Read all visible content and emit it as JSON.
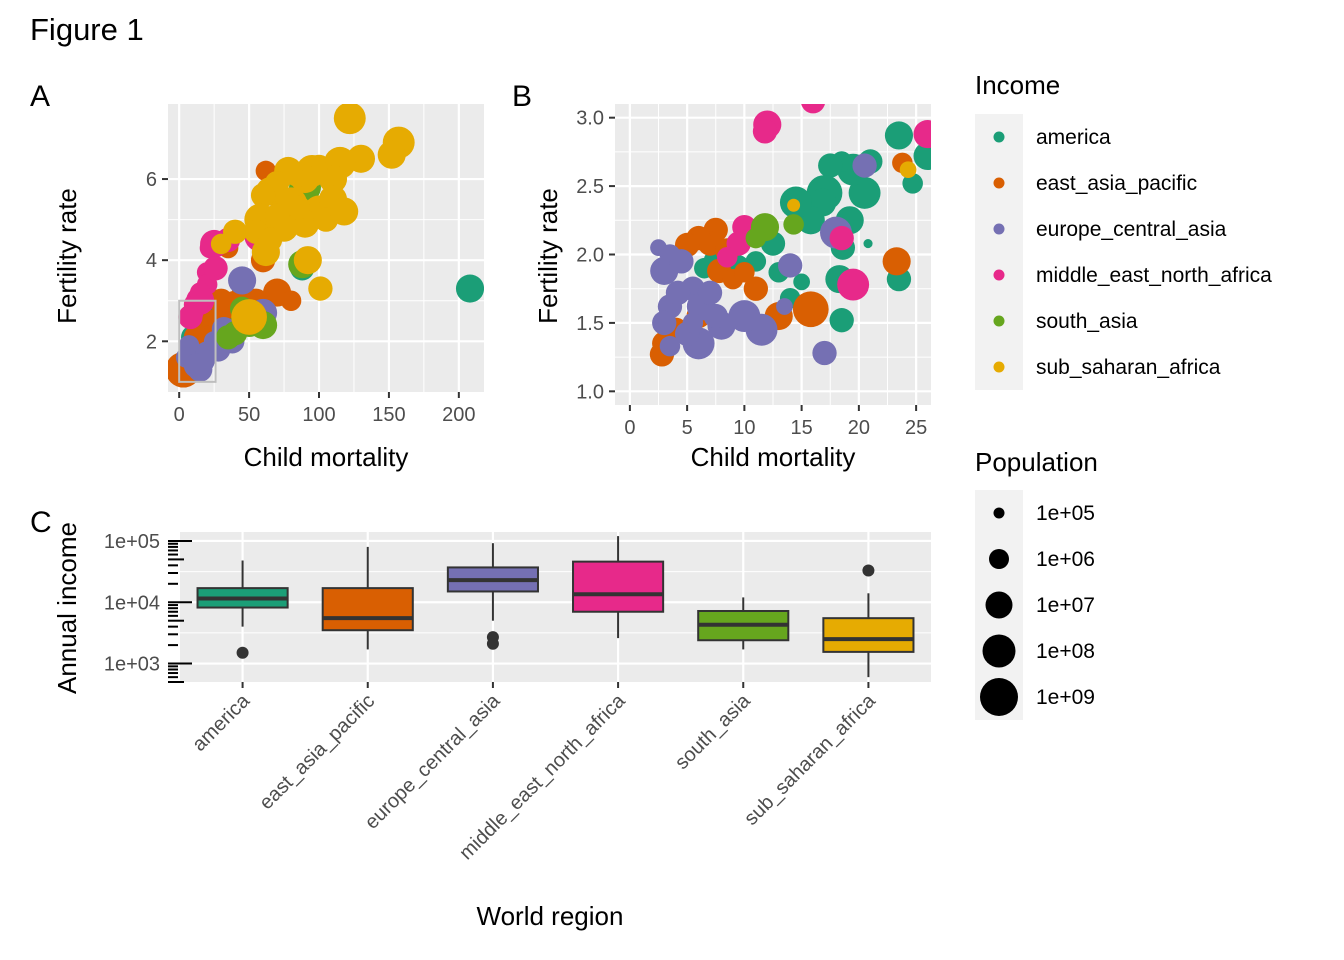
{
  "figure_title": "Figure 1",
  "panel_labels": {
    "a": "A",
    "b": "B",
    "c": "C"
  },
  "colors": {
    "america": "#1B9E77",
    "east_asia_pacific": "#D95F02",
    "europe_central_asia": "#7570B3",
    "middle_east_north_africa": "#E7298A",
    "south_asia": "#66A61E",
    "sub_saharan_africa": "#E6AB02",
    "panel_bg": "#EBEBEB",
    "grid": "#FFFFFF",
    "zoom_box": "#BEBEBE"
  },
  "legend": {
    "income_title": "Income",
    "income_keys": [
      "america",
      "east_asia_pacific",
      "europe_central_asia",
      "middle_east_north_africa",
      "south_asia",
      "sub_saharan_africa"
    ],
    "population_title": "Population",
    "population_keys": [
      "1e+05",
      "1e+06",
      "1e+07",
      "1e+08",
      "1e+09"
    ]
  },
  "chart_data": [
    {
      "id": "A",
      "type": "scatter",
      "title": "A",
      "xlabel": "Child mortality",
      "ylabel": "Fertility rate",
      "xlim": [
        -8,
        218
      ],
      "ylim": [
        0.75,
        7.85
      ],
      "xticks": [
        0,
        50,
        100,
        150,
        200
      ],
      "yticks": [
        2,
        4,
        6
      ],
      "zoom_box": {
        "x": [
          0,
          26
        ],
        "y": [
          1,
          3
        ]
      },
      "series": [
        {
          "name": "america",
          "points": [
            [
              208,
              3.3,
              7.5
            ],
            [
              90,
              5.8,
              6
            ],
            [
              88,
              3.8,
              7
            ],
            [
              30,
              2.5,
              7.5
            ],
            [
              22,
              2.3,
              7
            ],
            [
              18,
              2.0,
              7
            ],
            [
              15,
              2.4,
              7
            ],
            [
              12,
              1.9,
              6.5
            ],
            [
              10,
              2.1,
              7
            ],
            [
              16,
              2.7,
              7.5
            ],
            [
              25,
              1.9,
              7
            ],
            [
              8,
              1.8,
              6.5
            ],
            [
              20,
              2.6,
              7
            ],
            [
              14,
              2.2,
              7
            ]
          ]
        },
        {
          "name": "east_asia_pacific",
          "points": [
            [
              62,
              6.2,
              6.5
            ],
            [
              70,
              3.2,
              7.5
            ],
            [
              60,
              4.0,
              7
            ],
            [
              45,
              3.3,
              6.5
            ],
            [
              40,
              2.9,
              7.5
            ],
            [
              30,
              3.0,
              7
            ],
            [
              25,
              2.3,
              9
            ],
            [
              22,
              1.95,
              8.5
            ],
            [
              3,
              1.3,
              8.5
            ],
            [
              5,
              1.4,
              7.5
            ],
            [
              35,
              4.3,
              6.5
            ],
            [
              80,
              3.0,
              6.5
            ],
            [
              55,
              3.0,
              7
            ],
            [
              48,
              2.7,
              7
            ],
            [
              12,
              2.1,
              7
            ],
            [
              8,
              1.9,
              6.5
            ]
          ]
        },
        {
          "name": "europe_central_asia",
          "points": [
            [
              45,
              3.5,
              7.5
            ],
            [
              32,
              2.3,
              7
            ],
            [
              38,
              2.0,
              7
            ],
            [
              28,
              1.8,
              7
            ],
            [
              18,
              1.5,
              6.5
            ],
            [
              15,
              1.3,
              7
            ],
            [
              10,
              1.6,
              7
            ],
            [
              7,
              1.9,
              6.5
            ],
            [
              5,
              1.6,
              6.5
            ],
            [
              20,
              1.7,
              7
            ],
            [
              60,
              2.7,
              7.5
            ],
            [
              25,
              2.0,
              6.5
            ],
            [
              12,
              1.4,
              7
            ]
          ]
        },
        {
          "name": "middle_east_north_africa",
          "points": [
            [
              58,
              4.6,
              8
            ],
            [
              35,
              4.5,
              7
            ],
            [
              22,
              4.3,
              6.5
            ],
            [
              25,
              4.4,
              7.5
            ],
            [
              20,
              3.7,
              6.5
            ],
            [
              15,
              3.0,
              7.5
            ],
            [
              12,
              2.9,
              7
            ],
            [
              10,
              2.7,
              6.5
            ],
            [
              8,
              2.6,
              7
            ],
            [
              20,
              3.4,
              6.5
            ],
            [
              15,
              3.2,
              6.5
            ],
            [
              26,
              3.8,
              7
            ]
          ]
        },
        {
          "name": "south_asia",
          "points": [
            [
              90,
              5.8,
              8
            ],
            [
              88,
              3.9,
              7.5
            ],
            [
              50,
              2.5,
              8
            ],
            [
              40,
              2.2,
              7
            ],
            [
              60,
              2.4,
              7.5
            ],
            [
              45,
              2.8,
              7
            ],
            [
              35,
              2.1,
              7
            ]
          ]
        },
        {
          "name": "sub_saharan_africa",
          "points": [
            [
              122,
              7.5,
              8
            ],
            [
              157,
              6.9,
              8
            ],
            [
              152,
              6.6,
              7.5
            ],
            [
              130,
              6.5,
              7.5
            ],
            [
              115,
              6.4,
              8
            ],
            [
              110,
              6.0,
              7.5
            ],
            [
              100,
              6.3,
              7
            ],
            [
              95,
              6.2,
              8
            ],
            [
              90,
              6.0,
              7.5
            ],
            [
              85,
              6.1,
              7
            ],
            [
              78,
              6.2,
              7.5
            ],
            [
              70,
              5.9,
              7
            ],
            [
              65,
              5.7,
              7.5
            ],
            [
              60,
              5.6,
              7
            ],
            [
              58,
              5.0,
              8
            ],
            [
              55,
              4.7,
              7
            ],
            [
              80,
              5.4,
              8
            ],
            [
              100,
              5.2,
              8
            ],
            [
              110,
              5.5,
              7.5
            ],
            [
              90,
              4.9,
              7.5
            ],
            [
              105,
              5.0,
              7
            ],
            [
              85,
              5.3,
              7
            ],
            [
              118,
              5.2,
              7.5
            ],
            [
              75,
              4.8,
              7.5
            ],
            [
              70,
              5.1,
              7
            ],
            [
              92,
              4.0,
              7.5
            ],
            [
              101,
              3.3,
              7
            ],
            [
              62,
              4.2,
              7.5
            ],
            [
              50,
              2.6,
              8.5
            ],
            [
              40,
              4.7,
              7
            ],
            [
              30,
              4.4,
              6.5
            ],
            [
              65,
              4.5,
              7
            ]
          ]
        }
      ]
    },
    {
      "id": "B",
      "type": "scatter",
      "title": "B",
      "xlabel": "Child mortality",
      "ylabel": "Fertility rate",
      "xlim": [
        -1.3,
        26.3
      ],
      "ylim": [
        0.9,
        3.1
      ],
      "xticks": [
        0,
        5,
        10,
        15,
        20,
        25
      ],
      "yticks": [
        1.0,
        1.5,
        2.0,
        2.5,
        3.0
      ],
      "series": [
        {
          "name": "america",
          "points": [
            [
              23.5,
              2.87,
              7.5
            ],
            [
              26,
              2.72,
              7.5
            ],
            [
              24.7,
              2.52,
              6.5
            ],
            [
              21,
              2.68,
              7
            ],
            [
              20.5,
              2.45,
              8
            ],
            [
              19.5,
              2.62,
              8
            ],
            [
              18.5,
              2.68,
              6.5
            ],
            [
              17.5,
              2.65,
              7
            ],
            [
              17,
              2.45,
              8.5
            ],
            [
              16.8,
              2.38,
              7.5
            ],
            [
              15.8,
              2.25,
              7.5
            ],
            [
              14.5,
              2.38,
              8
            ],
            [
              19.2,
              2.25,
              7.5
            ],
            [
              18.6,
              2.05,
              7
            ],
            [
              18.3,
              1.82,
              7.5
            ],
            [
              20.8,
              2.08,
              5
            ],
            [
              23.5,
              1.82,
              7
            ],
            [
              18.5,
              1.52,
              7
            ],
            [
              12.5,
              2.08,
              7
            ],
            [
              11,
              1.95,
              6.5
            ],
            [
              9.5,
              1.92,
              6.5
            ],
            [
              8.5,
              1.93,
              7
            ],
            [
              7.5,
              1.95,
              7
            ],
            [
              6.5,
              1.9,
              6.5
            ],
            [
              14,
              1.68,
              6.5
            ],
            [
              15,
              1.8,
              6
            ],
            [
              13,
              1.87,
              6.5
            ]
          ]
        },
        {
          "name": "east_asia_pacific",
          "points": [
            [
              23.8,
              2.67,
              6.5
            ],
            [
              23.3,
              1.95,
              7.5
            ],
            [
              7.5,
              2.18,
              7
            ],
            [
              7,
              2.08,
              7
            ],
            [
              6,
              2.12,
              7
            ],
            [
              5,
              2.07,
              7
            ],
            [
              8.5,
              2.03,
              7
            ],
            [
              3,
              1.35,
              7
            ],
            [
              2.8,
              1.27,
              7
            ],
            [
              7.8,
              1.88,
              7
            ],
            [
              11,
              1.75,
              7
            ],
            [
              13,
              1.55,
              7.5
            ],
            [
              15.8,
              1.6,
              8.5
            ],
            [
              6,
              1.55,
              7
            ],
            [
              4,
              1.45,
              7
            ],
            [
              9,
              1.82,
              6.5
            ],
            [
              10,
              1.87,
              6.5
            ]
          ]
        },
        {
          "name": "europe_central_asia",
          "points": [
            [
              18,
              2.16,
              8
            ],
            [
              20.5,
              2.65,
              7
            ],
            [
              14,
              1.92,
              7
            ],
            [
              17,
              1.28,
              7
            ],
            [
              13.5,
              1.62,
              6
            ],
            [
              11.5,
              1.45,
              8
            ],
            [
              10,
              1.55,
              8
            ],
            [
              8,
              1.48,
              7.5
            ],
            [
              7.5,
              1.55,
              7
            ],
            [
              6,
              1.35,
              8
            ],
            [
              5,
              1.42,
              7
            ],
            [
              3.5,
              1.62,
              7
            ],
            [
              3,
              1.88,
              7.5
            ],
            [
              2.5,
              2.05,
              6
            ],
            [
              3.5,
              2.0,
              6.5
            ],
            [
              4.5,
              1.95,
              7
            ],
            [
              5.5,
              1.75,
              7
            ],
            [
              6.2,
              1.62,
              7.5
            ],
            [
              7,
              1.72,
              7
            ],
            [
              4.2,
              1.72,
              7
            ],
            [
              3,
              1.5,
              7
            ],
            [
              3.5,
              1.33,
              6.5
            ],
            [
              5.5,
              1.5,
              6.5
            ]
          ]
        },
        {
          "name": "middle_east_north_africa",
          "points": [
            [
              16,
              3.12,
              7
            ],
            [
              12,
              2.95,
              7.5
            ],
            [
              11.8,
              2.9,
              7
            ],
            [
              26,
              2.88,
              7.5
            ],
            [
              19.5,
              1.78,
              8
            ],
            [
              18.5,
              2.12,
              7
            ],
            [
              10,
              2.2,
              7
            ],
            [
              9.5,
              2.08,
              7
            ],
            [
              8.5,
              1.98,
              6.5
            ]
          ]
        },
        {
          "name": "south_asia",
          "points": [
            [
              11.8,
              2.2,
              7.5
            ],
            [
              14.3,
              2.22,
              6.5
            ],
            [
              11,
              2.12,
              6.5
            ]
          ]
        },
        {
          "name": "sub_saharan_africa",
          "points": [
            [
              14.3,
              2.36,
              5.5
            ],
            [
              24.3,
              2.62,
              6
            ]
          ]
        }
      ]
    },
    {
      "id": "C",
      "type": "box",
      "title": "C",
      "xlabel": "World region",
      "ylabel": "Annual income",
      "yscale": "log",
      "ylim": [
        500,
        140000
      ],
      "yticks": [
        "1e+03",
        "1e+04",
        "1e+05"
      ],
      "categories": [
        "america",
        "east_asia_pacific",
        "europe_central_asia",
        "middle_east_north_africa",
        "south_asia",
        "sub_saharan_africa"
      ],
      "boxes": [
        {
          "name": "america",
          "min": 4000,
          "q1": 8200,
          "median": 11500,
          "q3": 17000,
          "max": 48000,
          "outliers": [
            1500
          ]
        },
        {
          "name": "east_asia_pacific",
          "min": 1700,
          "q1": 3500,
          "median": 5500,
          "q3": 17000,
          "max": 80000,
          "outliers": []
        },
        {
          "name": "europe_central_asia",
          "min": 5000,
          "q1": 15000,
          "median": 23000,
          "q3": 37000,
          "max": 92000,
          "outliers": [
            2700,
            2100
          ]
        },
        {
          "name": "middle_east_north_africa",
          "min": 2600,
          "q1": 7000,
          "median": 13500,
          "q3": 46000,
          "max": 120000,
          "outliers": []
        },
        {
          "name": "south_asia",
          "min": 1700,
          "q1": 2400,
          "median": 4300,
          "q3": 7200,
          "max": 12000,
          "outliers": []
        },
        {
          "name": "sub_saharan_africa",
          "min": 600,
          "q1": 1550,
          "median": 2500,
          "q3": 5500,
          "max": 14000,
          "outliers": [
            33000
          ]
        }
      ]
    }
  ]
}
